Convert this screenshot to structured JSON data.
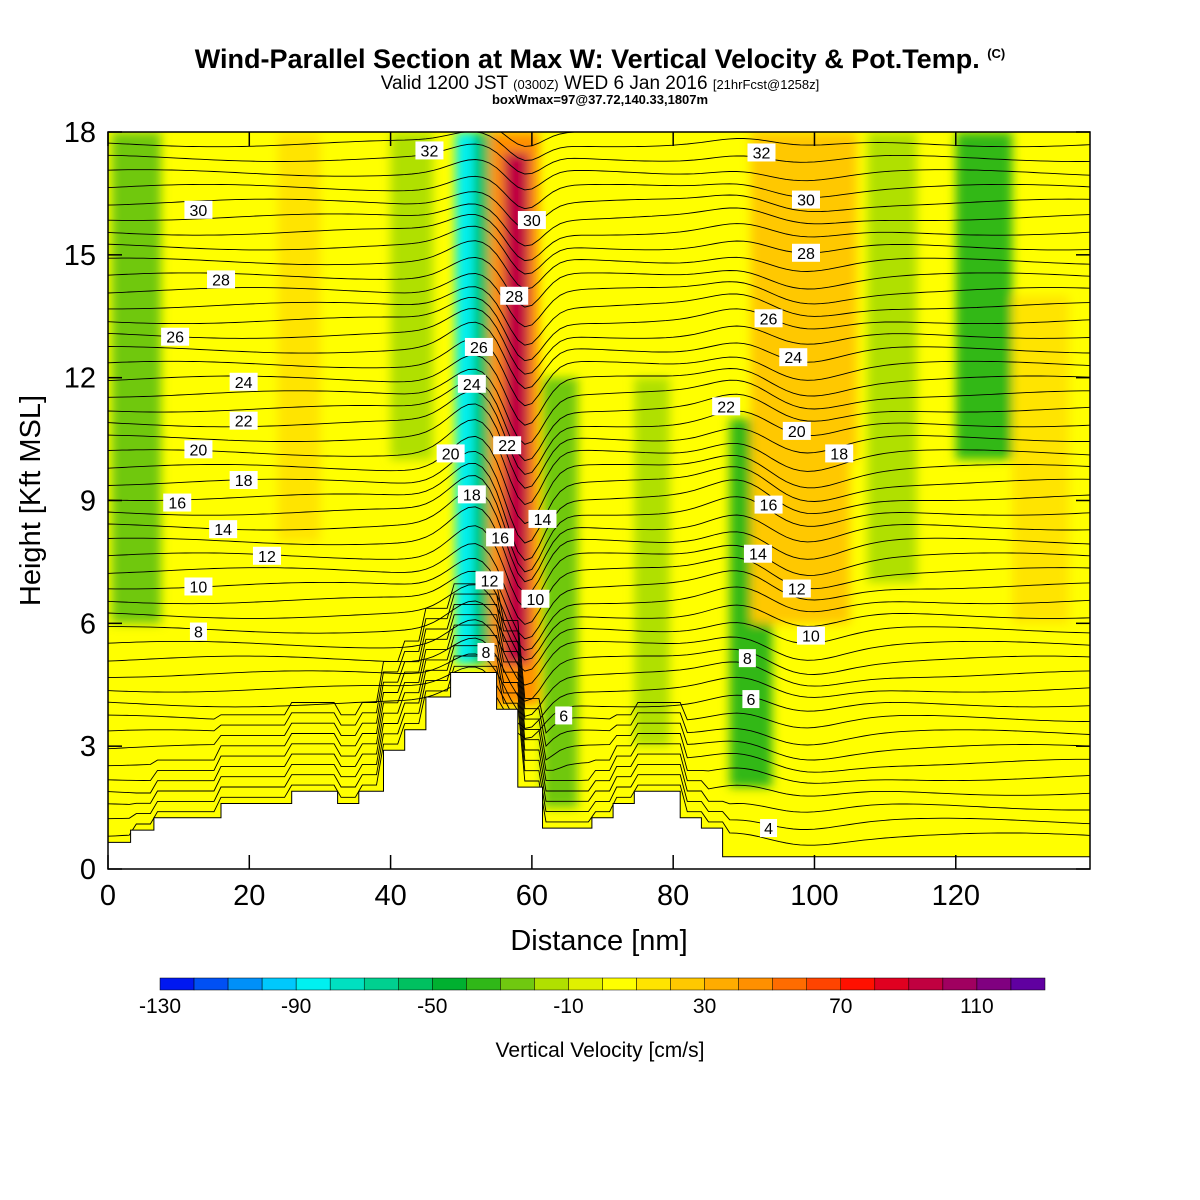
{
  "title": {
    "main": "Wind-Parallel Section at Max W: Vertical Velocity & Pot.Temp.",
    "copyright": "(C)",
    "valid_prefix": "Valid 1200 JST",
    "valid_utc": "(0300Z)",
    "valid_date": "WED 6 Jan 2016",
    "forecast": "[21hrFcst@1258z]",
    "box_info": "boxWmax=97@37.72,140.33,1807m"
  },
  "chart_data": {
    "type": "heatmap",
    "xlabel": "Distance [nm]",
    "ylabel": "Height [Kft MSL]",
    "xlim": [
      0,
      139
    ],
    "ylim": [
      0,
      18
    ],
    "xticks": [
      0,
      20,
      40,
      60,
      80,
      100,
      120
    ],
    "yticks": [
      0,
      3,
      6,
      9,
      12,
      15,
      18
    ],
    "background_value_cm_s": 0,
    "velocity_bands": [
      {
        "x_center": 4,
        "y_from": 6,
        "y_to": 18,
        "half_width": 3.5,
        "value": -30
      },
      {
        "x_center": 27,
        "y_from": 8,
        "y_to": 18,
        "half_width": 3,
        "value": 15
      },
      {
        "x_center": 43,
        "y_from": 10,
        "y_to": 18,
        "half_width": 3,
        "value": -20
      },
      {
        "x_center": 52,
        "y_from": 5,
        "y_to": 18,
        "half_width": 2.5,
        "value": -60
      },
      {
        "x_center": 50.5,
        "y_from": 5,
        "y_to": 18,
        "half_width": 1.3,
        "value": -85
      },
      {
        "x_center": 57.5,
        "y_from": 4,
        "y_to": 18,
        "half_width": 3.5,
        "value": 40
      },
      {
        "x_center": 57.8,
        "y_from": 5,
        "y_to": 17.5,
        "half_width": 1.8,
        "value": 95
      },
      {
        "x_center": 64,
        "y_from": 1.5,
        "y_to": 12,
        "half_width": 2.5,
        "value": -30
      },
      {
        "x_center": 77,
        "y_from": 3,
        "y_to": 12,
        "half_width": 2.5,
        "value": -20
      },
      {
        "x_center": 91,
        "y_from": 2,
        "y_to": 11,
        "half_width": 3,
        "value": -40
      },
      {
        "x_center": 98,
        "y_from": 6,
        "y_to": 18,
        "half_width": 7,
        "value": 20
      },
      {
        "x_center": 103,
        "y_from": 10,
        "y_to": 18,
        "half_width": 3,
        "value": 25
      },
      {
        "x_center": 111,
        "y_from": 7,
        "y_to": 18,
        "half_width": 3.5,
        "value": -20
      },
      {
        "x_center": 124,
        "y_from": 10,
        "y_to": 18,
        "half_width": 4,
        "value": -35
      },
      {
        "x_center": 132,
        "y_from": 6,
        "y_to": 14,
        "half_width": 4,
        "value": 15
      }
    ],
    "terrain_kft": [
      [
        0,
        0.65
      ],
      [
        3.2,
        0.65
      ],
      [
        3.2,
        0.95
      ],
      [
        6.5,
        0.95
      ],
      [
        6.5,
        1.25
      ],
      [
        16,
        1.25
      ],
      [
        16,
        1.6
      ],
      [
        26,
        1.6
      ],
      [
        26,
        1.9
      ],
      [
        32.5,
        1.9
      ],
      [
        32.5,
        1.6
      ],
      [
        35.5,
        1.6
      ],
      [
        35.5,
        1.9
      ],
      [
        39,
        1.9
      ],
      [
        39,
        2.9
      ],
      [
        42,
        2.9
      ],
      [
        42,
        3.4
      ],
      [
        45,
        3.4
      ],
      [
        45,
        4.2
      ],
      [
        48.5,
        4.2
      ],
      [
        48.5,
        4.8
      ],
      [
        55,
        4.8
      ],
      [
        55,
        3.9
      ],
      [
        58,
        3.9
      ],
      [
        58,
        2.0
      ],
      [
        61.5,
        2.0
      ],
      [
        61.5,
        1.0
      ],
      [
        68.5,
        1.0
      ],
      [
        68.5,
        1.25
      ],
      [
        71.5,
        1.25
      ],
      [
        71.5,
        1.6
      ],
      [
        74.5,
        1.6
      ],
      [
        74.5,
        1.9
      ],
      [
        81,
        1.9
      ],
      [
        81,
        1.25
      ],
      [
        84,
        1.25
      ],
      [
        84,
        1.0
      ],
      [
        87,
        1.0
      ],
      [
        87,
        0.3
      ],
      [
        139,
        0.3
      ]
    ],
    "theta_levels": [
      4,
      6,
      8,
      10,
      12,
      14,
      16,
      18,
      20,
      22,
      24,
      26,
      28,
      30,
      32
    ],
    "contour_labels": [
      {
        "v": "32",
        "x": 45.5,
        "y": 17.55
      },
      {
        "v": "32",
        "x": 92.5,
        "y": 17.5
      },
      {
        "v": "30",
        "x": 12.8,
        "y": 16.1
      },
      {
        "v": "30",
        "x": 98.8,
        "y": 16.35
      },
      {
        "v": "30",
        "x": 60,
        "y": 15.85
      },
      {
        "v": "28",
        "x": 16,
        "y": 14.4
      },
      {
        "v": "28",
        "x": 57.5,
        "y": 14
      },
      {
        "v": "28",
        "x": 98.8,
        "y": 15.05
      },
      {
        "v": "26",
        "x": 9.5,
        "y": 13
      },
      {
        "v": "26",
        "x": 52.5,
        "y": 12.75
      },
      {
        "v": "26",
        "x": 93.5,
        "y": 13.45
      },
      {
        "v": "24",
        "x": 19.2,
        "y": 11.9
      },
      {
        "v": "24",
        "x": 51.5,
        "y": 11.85
      },
      {
        "v": "24",
        "x": 97,
        "y": 12.5
      },
      {
        "v": "22",
        "x": 19.2,
        "y": 10.95
      },
      {
        "v": "22",
        "x": 56.5,
        "y": 10.35
      },
      {
        "v": "22",
        "x": 87.5,
        "y": 11.3
      },
      {
        "v": "20",
        "x": 12.8,
        "y": 10.25
      },
      {
        "v": "20",
        "x": 48.5,
        "y": 10.15
      },
      {
        "v": "20",
        "x": 97.5,
        "y": 10.7
      },
      {
        "v": "18",
        "x": 19.2,
        "y": 9.5
      },
      {
        "v": "18",
        "x": 51.5,
        "y": 9.15
      },
      {
        "v": "18",
        "x": 103.5,
        "y": 10.15
      },
      {
        "v": "16",
        "x": 9.8,
        "y": 8.95
      },
      {
        "v": "16",
        "x": 55.5,
        "y": 8.1
      },
      {
        "v": "16",
        "x": 93.5,
        "y": 8.9
      },
      {
        "v": "14",
        "x": 16.3,
        "y": 8.3
      },
      {
        "v": "14",
        "x": 61.5,
        "y": 8.55
      },
      {
        "v": "14",
        "x": 92,
        "y": 7.7
      },
      {
        "v": "12",
        "x": 22.5,
        "y": 7.65
      },
      {
        "v": "12",
        "x": 54,
        "y": 7.05
      },
      {
        "v": "12",
        "x": 97.5,
        "y": 6.85
      },
      {
        "v": "10",
        "x": 12.8,
        "y": 6.9
      },
      {
        "v": "10",
        "x": 60.5,
        "y": 6.6
      },
      {
        "v": "10",
        "x": 99.5,
        "y": 5.7
      },
      {
        "v": "8",
        "x": 12.8,
        "y": 5.8
      },
      {
        "v": "8",
        "x": 53.5,
        "y": 5.3
      },
      {
        "v": "8",
        "x": 90.5,
        "y": 5.15
      },
      {
        "v": "6",
        "x": 64.5,
        "y": 3.75
      },
      {
        "v": "6",
        "x": 91,
        "y": 4.15
      },
      {
        "v": "4",
        "x": 93.5,
        "y": 1.0
      }
    ],
    "colorbar": {
      "label": "Vertical Velocity [cm/s]",
      "min": -130,
      "max": 130,
      "step": 10,
      "tick_labels": [
        "-130",
        "-90",
        "-50",
        "-10",
        "30",
        "70",
        "110"
      ],
      "colors": [
        "#0018f0",
        "#0050f4",
        "#0090f8",
        "#00c8fc",
        "#00f0f0",
        "#00e0c0",
        "#00d090",
        "#00c060",
        "#00b030",
        "#30b818",
        "#70c810",
        "#b0e000",
        "#e0f000",
        "#ffff00",
        "#ffe400",
        "#ffc800",
        "#ffac00",
        "#ff9000",
        "#ff6c00",
        "#ff4400",
        "#ff1000",
        "#e00020",
        "#c00040",
        "#a00060",
        "#800080",
        "#6000a0"
      ]
    }
  }
}
